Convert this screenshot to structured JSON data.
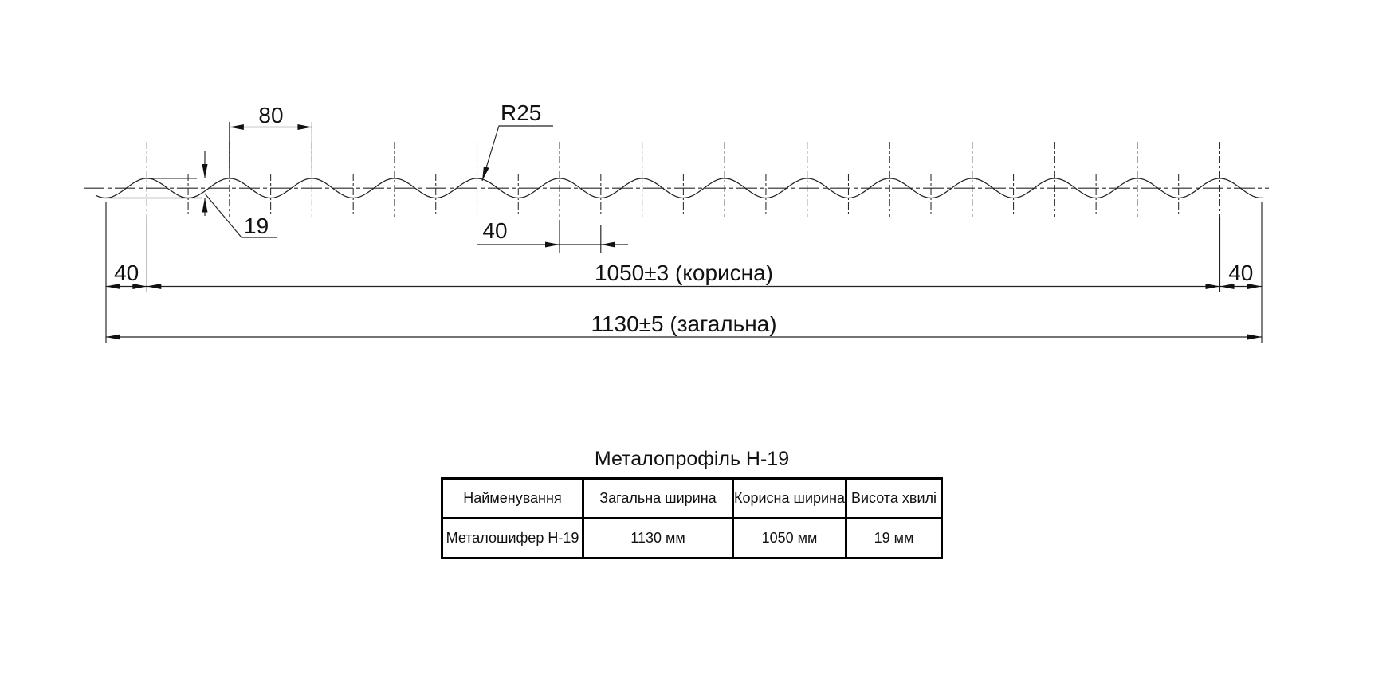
{
  "drawing": {
    "dim_pitch": "80",
    "dim_radius": "R25",
    "dim_height": "19",
    "dim_half_pitch": "40",
    "dim_edge_left": "40",
    "dim_useful": "1050±3 (корисна)",
    "dim_edge_right": "40",
    "dim_total": "1130±5 (загальна)"
  },
  "table": {
    "title": "Металопрофіль Н-19",
    "headers": [
      "Найменування",
      "Загальна ширина",
      "Корисна ширина",
      "Висота хвилі"
    ],
    "rows": [
      [
        "Металошифер Н-19",
        "1130 мм",
        "1050 мм",
        "19 мм"
      ]
    ]
  },
  "colors": {
    "line": "#222222",
    "background": "#ffffff"
  }
}
